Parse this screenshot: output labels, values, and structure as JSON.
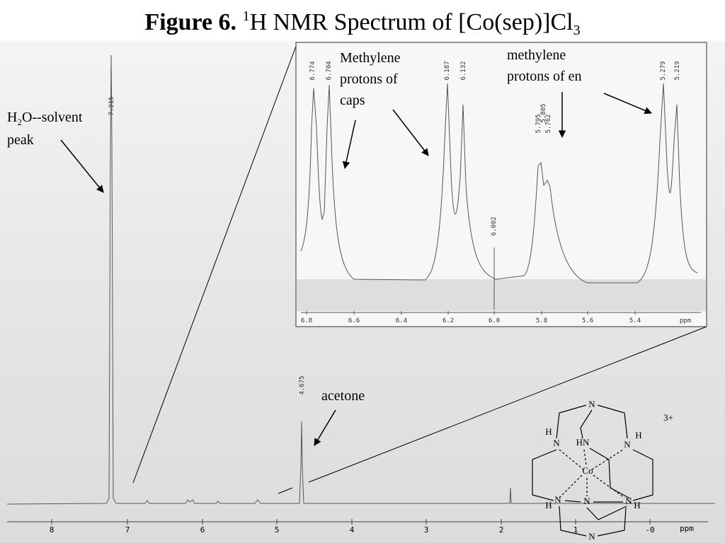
{
  "title": {
    "label": "Figure 6.",
    "sup": "1",
    "text": "H NMR Spectrum of [Co(sep)]Cl",
    "sub": "3"
  },
  "spectrum": {
    "axis_ticks": [
      "8",
      "7",
      "6",
      "5",
      "4",
      "3",
      "2",
      "1",
      "-0"
    ],
    "axis_unit": "ppm",
    "peak_labels": [
      "7.215",
      "4.675"
    ]
  },
  "annotations": {
    "solvent": {
      "h": "H",
      "sub": "2",
      "rest": "O--solvent",
      "line2": "peak"
    },
    "acetone": "acetone",
    "caps": [
      "Methylene",
      "protons of",
      "caps"
    ],
    "en": [
      "methylene",
      "protons of en"
    ]
  },
  "inset": {
    "axis_ticks": [
      "6.8",
      "6.6",
      "6.4",
      "6.2",
      "6.0",
      "5.8",
      "5.6",
      "5.4"
    ],
    "axis_unit": "ppm",
    "peak_labels": [
      "6.774",
      "6.704",
      "6.187",
      "6.132",
      "5.795",
      "5.805",
      "5.762",
      "6.002",
      "5.279",
      "5.219"
    ]
  },
  "structure": {
    "charge": "3+",
    "atoms": [
      "N",
      "H",
      "N",
      "HN",
      "N",
      "H",
      "Co",
      "H",
      "N",
      "N",
      "N",
      "H",
      "N"
    ]
  }
}
